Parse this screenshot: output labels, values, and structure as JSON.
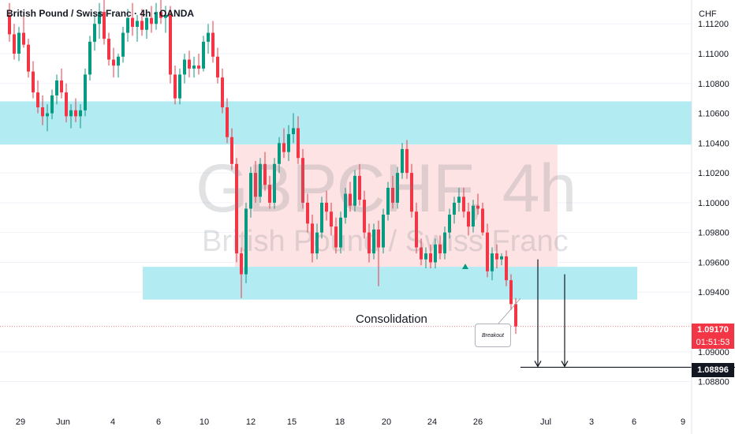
{
  "header": {
    "title": "British Pound / Swiss Franc · 4h · OANDA"
  },
  "watermark": {
    "symbol": "GBPCHF, 4h",
    "name": "British Pound / Swiss Franc"
  },
  "axis": {
    "currency": "CHF"
  },
  "colors": {
    "up": "#089981",
    "down": "#f23645",
    "zone": "#b2ebf2",
    "range": "#fde3e3",
    "target_line": "#131722"
  },
  "annotations": {
    "consolidation": "Consolidation",
    "breakout": "Breakout"
  },
  "price_tags": {
    "current_price": "1.09170",
    "countdown": "01:51:53",
    "target_price": "1.08896"
  },
  "chart_data": {
    "type": "candlestick",
    "title": "British Pound / Swiss Franc · 4h · OANDA",
    "xlabel": "",
    "ylabel": "",
    "ylim": [
      1.0866,
      1.1136
    ],
    "y_ticks": [
      1.112,
      1.11,
      1.108,
      1.106,
      1.104,
      1.102,
      1.1,
      1.098,
      1.096,
      1.094,
      1.09,
      1.088
    ],
    "y_tick_labels": [
      "1.11200",
      "1.11000",
      "1.10800",
      "1.10600",
      "1.10400",
      "1.10200",
      "1.10000",
      "1.09800",
      "1.09600",
      "1.09400",
      "1.09000",
      "1.08800"
    ],
    "x_tick_labels": [
      "29",
      "Jun",
      "4",
      "6",
      "10",
      "12",
      "15",
      "18",
      "20",
      "24",
      "26",
      "Jul",
      "3",
      "6",
      "9"
    ],
    "candle_count": 108,
    "candles": [
      [
        1.1126,
        1.1134,
        1.1108,
        1.1113
      ],
      [
        1.1113,
        1.112,
        1.1096,
        1.11
      ],
      [
        1.11,
        1.1118,
        1.1095,
        1.1114
      ],
      [
        1.1114,
        1.1126,
        1.1104,
        1.1106
      ],
      [
        1.1106,
        1.111,
        1.1084,
        1.1088
      ],
      [
        1.1088,
        1.1095,
        1.107,
        1.1074
      ],
      [
        1.1074,
        1.1082,
        1.106,
        1.1064
      ],
      [
        1.1064,
        1.1072,
        1.1052,
        1.1058
      ],
      [
        1.1058,
        1.1066,
        1.1048,
        1.106
      ],
      [
        1.106,
        1.1076,
        1.1056,
        1.1072
      ],
      [
        1.1072,
        1.1086,
        1.1066,
        1.1082
      ],
      [
        1.1082,
        1.109,
        1.107,
        1.1074
      ],
      [
        1.1074,
        1.108,
        1.1054,
        1.1058
      ],
      [
        1.1058,
        1.1066,
        1.105,
        1.1062
      ],
      [
        1.1062,
        1.107,
        1.1054,
        1.1058
      ],
      [
        1.1058,
        1.1066,
        1.105,
        1.1062
      ],
      [
        1.1062,
        1.109,
        1.1058,
        1.1086
      ],
      [
        1.1086,
        1.1112,
        1.1082,
        1.1108
      ],
      [
        1.1108,
        1.1126,
        1.1102,
        1.112
      ],
      [
        1.112,
        1.1134,
        1.111,
        1.1128
      ],
      [
        1.1128,
        1.1136,
        1.1106,
        1.111
      ],
      [
        1.111,
        1.1114,
        1.1092,
        1.1096
      ],
      [
        1.1096,
        1.1104,
        1.1084,
        1.1092
      ],
      [
        1.1092,
        1.11,
        1.1084,
        1.1098
      ],
      [
        1.1098,
        1.1118,
        1.1094,
        1.1114
      ],
      [
        1.1114,
        1.113,
        1.1108,
        1.1124
      ],
      [
        1.1124,
        1.1134,
        1.1112,
        1.1118
      ],
      [
        1.1118,
        1.1126,
        1.1108,
        1.1122
      ],
      [
        1.1122,
        1.113,
        1.1112,
        1.1116
      ],
      [
        1.1116,
        1.1128,
        1.111,
        1.1124
      ],
      [
        1.1124,
        1.1132,
        1.1114,
        1.112
      ],
      [
        1.112,
        1.1134,
        1.1116,
        1.1128
      ],
      [
        1.1128,
        1.1136,
        1.112,
        1.1124
      ],
      [
        1.1124,
        1.1132,
        1.1114,
        1.1126
      ],
      [
        1.1126,
        1.1132,
        1.108,
        1.1086
      ],
      [
        1.1086,
        1.1092,
        1.1066,
        1.107
      ],
      [
        1.107,
        1.109,
        1.1066,
        1.1086
      ],
      [
        1.1086,
        1.11,
        1.108,
        1.1096
      ],
      [
        1.1096,
        1.1102,
        1.1084,
        1.109
      ],
      [
        1.109,
        1.1098,
        1.1084,
        1.1092
      ],
      [
        1.1092,
        1.11,
        1.1086,
        1.109
      ],
      [
        1.109,
        1.1112,
        1.1088,
        1.1108
      ],
      [
        1.1108,
        1.112,
        1.11,
        1.1114
      ],
      [
        1.1114,
        1.1122,
        1.1094,
        1.1098
      ],
      [
        1.1098,
        1.1104,
        1.108,
        1.1084
      ],
      [
        1.1084,
        1.109,
        1.106,
        1.1064
      ],
      [
        1.1064,
        1.107,
        1.104,
        1.1044
      ],
      [
        1.1044,
        1.105,
        1.1022,
        1.1026
      ],
      [
        1.1026,
        1.103,
        1.096,
        1.0966
      ],
      [
        1.0966,
        1.097,
        1.0936,
        1.0952
      ],
      [
        1.0952,
        1.1,
        1.0946,
        1.0996
      ],
      [
        1.0996,
        1.1024,
        1.099,
        1.102
      ],
      [
        1.102,
        1.1028,
        1.1,
        1.1004
      ],
      [
        1.1004,
        1.103,
        1.1,
        1.1026
      ],
      [
        1.1026,
        1.1034,
        1.1008,
        1.1012
      ],
      [
        1.1012,
        1.1018,
        1.0996,
        1.1
      ],
      [
        1.1,
        1.103,
        1.0996,
        1.1026
      ],
      [
        1.1026,
        1.1044,
        1.102,
        1.104
      ],
      [
        1.104,
        1.105,
        1.103,
        1.1034
      ],
      [
        1.1034,
        1.1052,
        1.1028,
        1.1046
      ],
      [
        1.1046,
        1.106,
        1.104,
        1.105
      ],
      [
        1.105,
        1.1058,
        1.1026,
        1.103
      ],
      [
        1.103,
        1.1036,
        1.0996,
        1.1
      ],
      [
        1.1,
        1.1006,
        1.098,
        1.0986
      ],
      [
        1.0986,
        1.0992,
        1.096,
        1.0966
      ],
      [
        1.0966,
        1.0986,
        1.0962,
        1.098
      ],
      [
        1.098,
        1.1004,
        1.0976,
        1.1
      ],
      [
        1.1,
        1.1008,
        1.0988,
        1.0994
      ],
      [
        1.0994,
        1.1,
        1.0978,
        1.0984
      ],
      [
        1.0984,
        1.099,
        1.0966,
        1.097
      ],
      [
        1.097,
        1.0994,
        1.0966,
        1.099
      ],
      [
        1.099,
        1.101,
        1.0986,
        1.1006
      ],
      [
        1.1006,
        1.1014,
        1.0994,
        1.0998
      ],
      [
        1.0998,
        1.1022,
        1.0994,
        1.1018
      ],
      [
        1.1018,
        1.1026,
        1.0998,
        1.1002
      ],
      [
        1.1002,
        1.1008,
        1.0976,
        1.098
      ],
      [
        1.098,
        1.0986,
        1.096,
        1.0966
      ],
      [
        1.0966,
        1.0986,
        1.0962,
        1.0982
      ],
      [
        1.0982,
        1.0988,
        1.0944,
        1.097
      ],
      [
        1.097,
        1.0996,
        1.0966,
        1.0992
      ],
      [
        1.0992,
        1.1014,
        1.0988,
        1.101
      ],
      [
        1.101,
        1.1018,
        1.0996,
        1.1
      ],
      [
        1.1,
        1.1024,
        1.0996,
        1.102
      ],
      [
        1.102,
        1.104,
        1.1016,
        1.1036
      ],
      [
        1.1036,
        1.1042,
        1.1016,
        1.102
      ],
      [
        1.102,
        1.1026,
        1.099,
        1.0994
      ],
      [
        1.0994,
        1.1,
        1.0966,
        1.097
      ],
      [
        1.097,
        1.0976,
        1.0958,
        1.0962
      ],
      [
        1.0962,
        1.097,
        1.0956,
        1.0966
      ],
      [
        1.0966,
        1.0972,
        1.0956,
        1.096
      ],
      [
        1.096,
        1.0976,
        1.0956,
        1.0972
      ],
      [
        1.0972,
        1.0978,
        1.0962,
        1.0966
      ],
      [
        1.0966,
        1.0984,
        1.0962,
        1.098
      ],
      [
        1.098,
        1.0996,
        1.0976,
        1.0992
      ],
      [
        1.0992,
        1.1004,
        1.0986,
        1.1
      ],
      [
        1.1,
        1.101,
        1.0994,
        1.1004
      ],
      [
        1.1004,
        1.101,
        1.099,
        1.0994
      ],
      [
        1.0994,
        1.1,
        1.0978,
        1.0984
      ],
      [
        1.0984,
        1.1002,
        1.098,
        1.0998
      ],
      [
        1.0998,
        1.1006,
        1.0992,
        1.0996
      ],
      [
        1.0996,
        1.1,
        1.0978,
        1.098
      ],
      [
        1.098,
        1.0986,
        1.095,
        1.0954
      ],
      [
        1.0954,
        1.097,
        1.0948,
        1.0966
      ],
      [
        1.0966,
        1.0972,
        1.0956,
        1.0962
      ],
      [
        1.0962,
        1.0966,
        1.0958,
        1.0964
      ],
      [
        1.0964,
        1.0968,
        1.0944,
        1.0948
      ],
      [
        1.0948,
        1.0952,
        1.0928,
        1.0932
      ],
      [
        1.0932,
        1.0936,
        1.0912,
        1.0917
      ]
    ],
    "resistance_zone": [
      1.1039,
      1.1068
    ],
    "support_zone": [
      1.0935,
      1.0957
    ],
    "consolidation_range": [
      1.0957,
      1.1039
    ],
    "target_level": 1.08896,
    "current_price": 1.0917
  }
}
